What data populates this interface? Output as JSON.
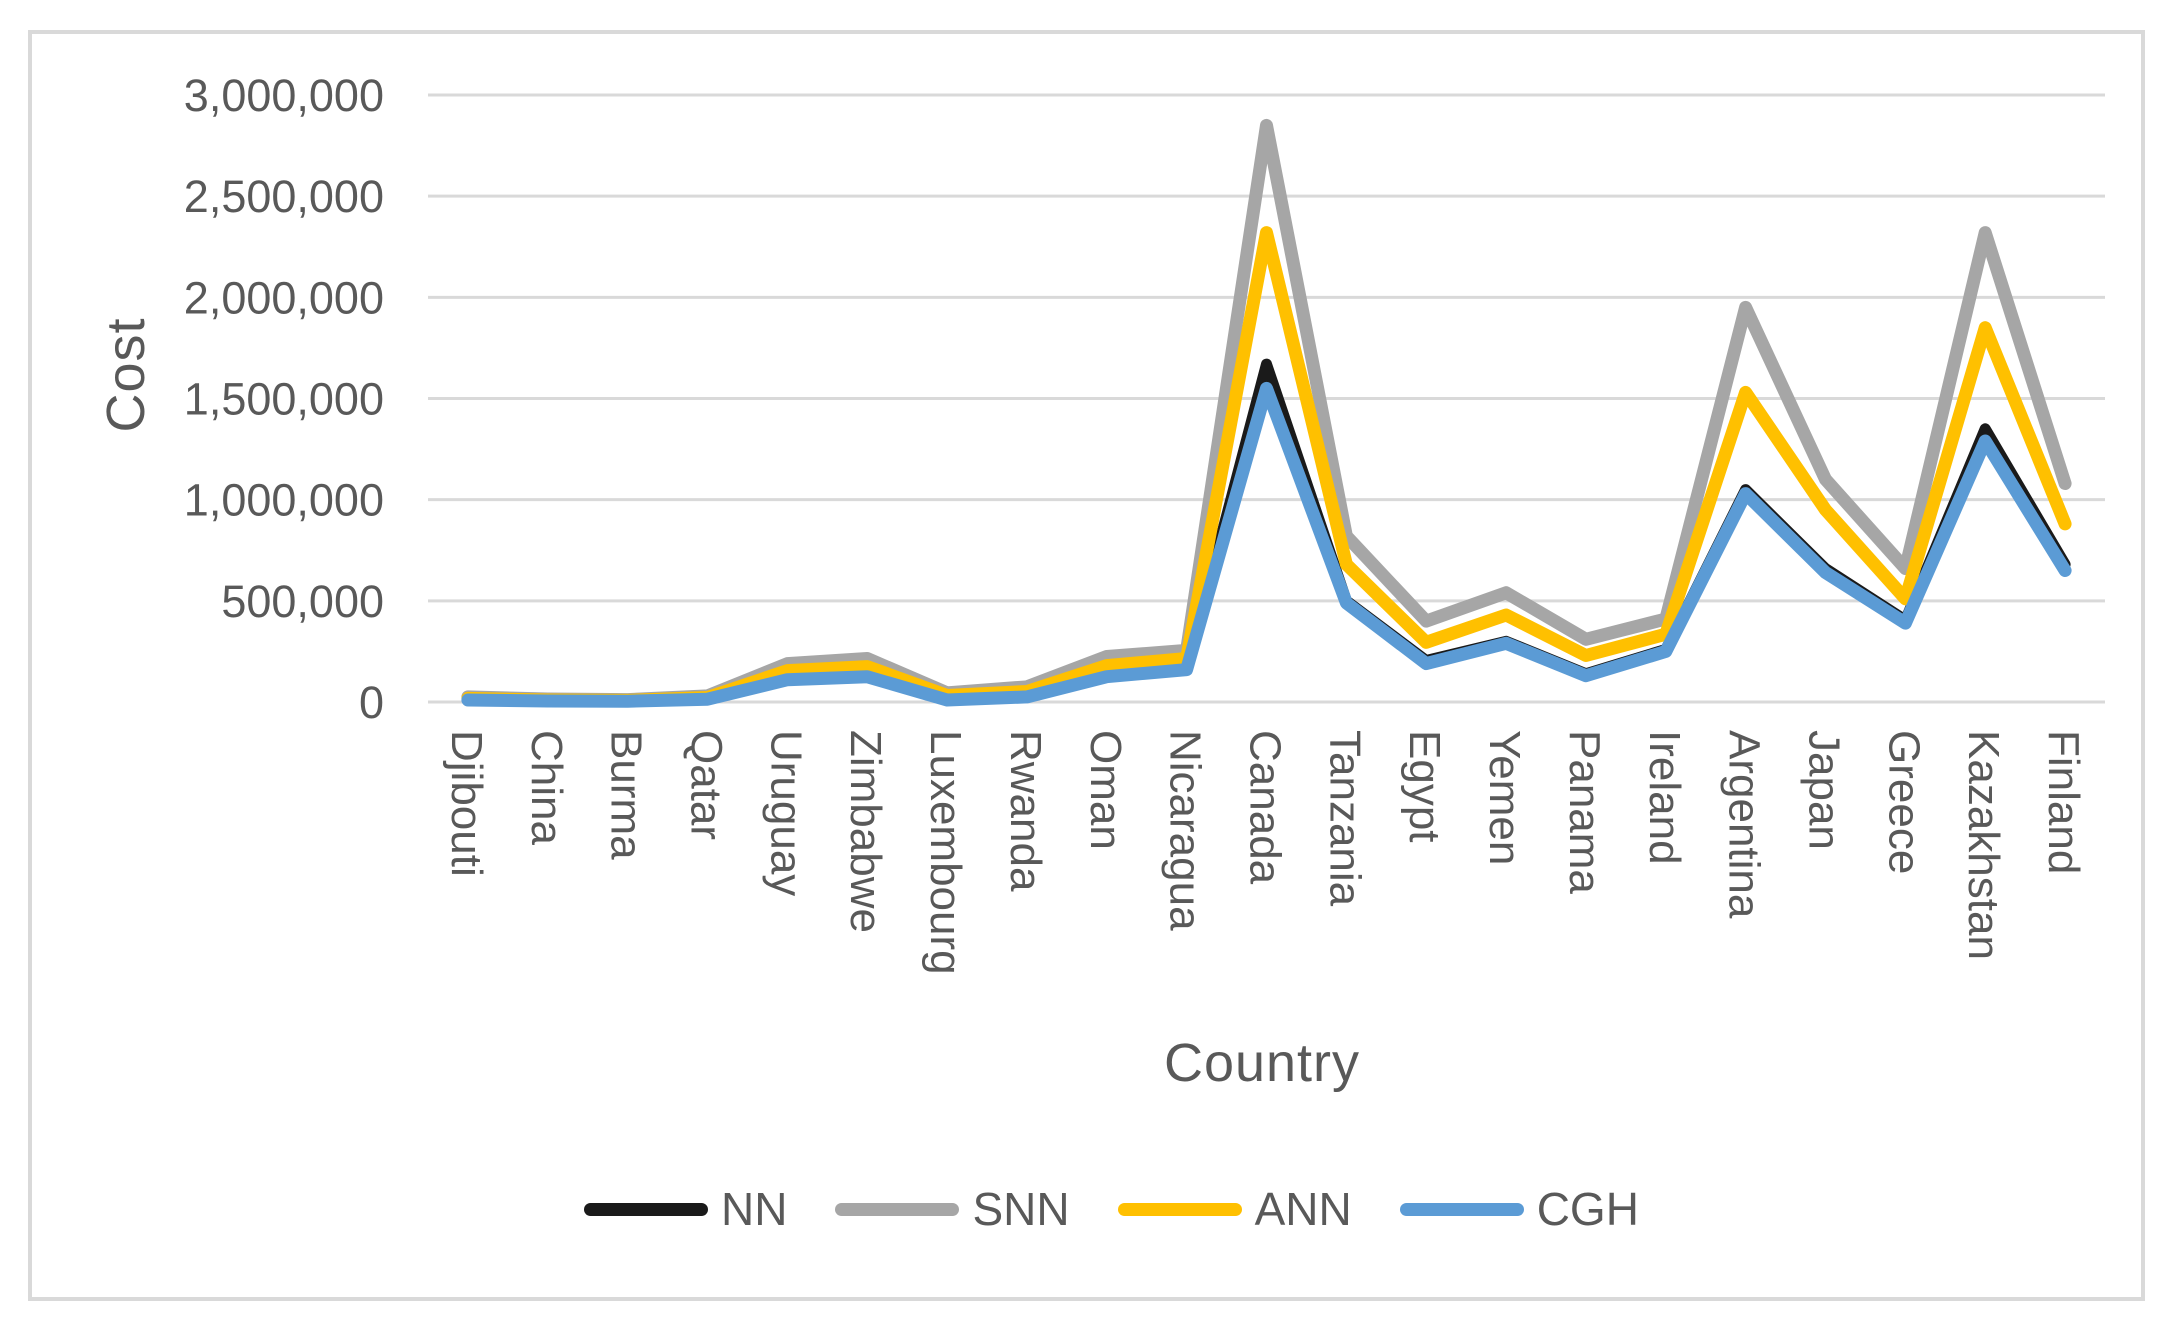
{
  "frame": {
    "border_color": "#d9d9d9",
    "background": "#ffffff"
  },
  "axes": {
    "y_title": "Cost",
    "x_title": "Country",
    "tick_label_color": "#595959",
    "gridline_color": "#d9d9d9"
  },
  "legend": {
    "position": "bottom",
    "items": [
      {
        "label": "NN",
        "color": "#1a1a1a"
      },
      {
        "label": "SNN",
        "color": "#a6a6a6"
      },
      {
        "label": "ANN",
        "color": "#ffc000"
      },
      {
        "label": "CGH",
        "color": "#5b9bd5"
      }
    ]
  },
  "chart_data": {
    "type": "line",
    "title": "",
    "xlabel": "Country",
    "ylabel": "Cost",
    "ylim": [
      0,
      3000000
    ],
    "y_tick_interval": 500000,
    "y_tick_labels": [
      "0",
      "500,000",
      "1,000,000",
      "1,500,000",
      "2,000,000",
      "2,500,000",
      "3,000,000"
    ],
    "grid": true,
    "legend_position": "bottom",
    "categories": [
      "Djibouti",
      "China",
      "Burma",
      "Qatar",
      "Uruguay",
      "Zimbabwe",
      "Luxembourg",
      "Rwanda",
      "Oman",
      "Nicaragua",
      "Canada",
      "Tanzania",
      "Egypt",
      "Yemen",
      "Panama",
      "Ireland",
      "Argentina",
      "Japan",
      "Greece",
      "Kazakhstan",
      "Finland"
    ],
    "series": [
      {
        "name": "NN",
        "color": "#1a1a1a",
        "stroke_width": 11,
        "values": [
          12000,
          7000,
          5000,
          16000,
          120000,
          135000,
          15000,
          30000,
          135000,
          170000,
          1670000,
          500000,
          205000,
          300000,
          140000,
          260000,
          1050000,
          660000,
          405000,
          1350000,
          680000
        ]
      },
      {
        "name": "SNN",
        "color": "#a6a6a6",
        "stroke_width": 13,
        "values": [
          25000,
          15000,
          12000,
          30000,
          190000,
          215000,
          45000,
          75000,
          225000,
          255000,
          2850000,
          820000,
          400000,
          540000,
          310000,
          410000,
          1950000,
          1100000,
          660000,
          2320000,
          1080000
        ]
      },
      {
        "name": "ANN",
        "color": "#ffc000",
        "stroke_width": 13,
        "values": [
          18000,
          10000,
          8000,
          22000,
          155000,
          175000,
          32000,
          52000,
          180000,
          215000,
          2320000,
          680000,
          295000,
          430000,
          230000,
          335000,
          1530000,
          950000,
          510000,
          1850000,
          880000
        ]
      },
      {
        "name": "CGH",
        "color": "#5b9bd5",
        "stroke_width": 13,
        "values": [
          10000,
          5000,
          4000,
          14000,
          110000,
          125000,
          10000,
          25000,
          125000,
          160000,
          1550000,
          490000,
          190000,
          290000,
          130000,
          250000,
          1030000,
          640000,
          390000,
          1290000,
          650000
        ]
      }
    ]
  }
}
